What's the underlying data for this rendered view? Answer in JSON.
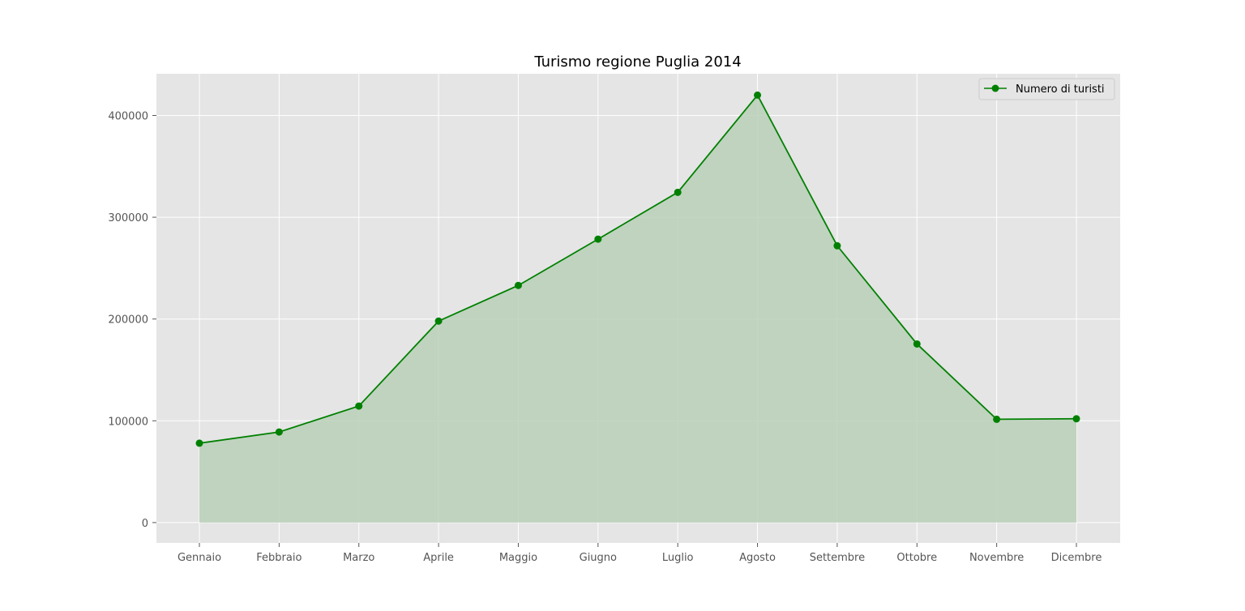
{
  "chart_data": {
    "type": "area",
    "title": "Turismo regione Puglia 2014",
    "xlabel": "",
    "ylabel": "",
    "categories": [
      "Gennaio",
      "Febbraio",
      "Marzo",
      "Aprile",
      "Maggio",
      "Giugno",
      "Luglio",
      "Agosto",
      "Settembre",
      "Ottobre",
      "Novembre",
      "Dicembre"
    ],
    "series": [
      {
        "name": "Numero di turisti",
        "values": [
          78000,
          89000,
          114500,
          198000,
          233000,
          278500,
          324500,
          420000,
          272000,
          175500,
          101500,
          102000
        ],
        "color": "#008000",
        "fill_color": "#b8d0b8",
        "marker": "circle"
      }
    ],
    "yticks": [
      0,
      100000,
      200000,
      300000,
      400000
    ],
    "ytick_labels": [
      "0",
      "100000",
      "200000",
      "300000",
      "400000"
    ],
    "ylim": [
      -20000,
      441000
    ],
    "grid": true,
    "legend_position": "top-right",
    "plot_background": "#e5e5e5"
  }
}
